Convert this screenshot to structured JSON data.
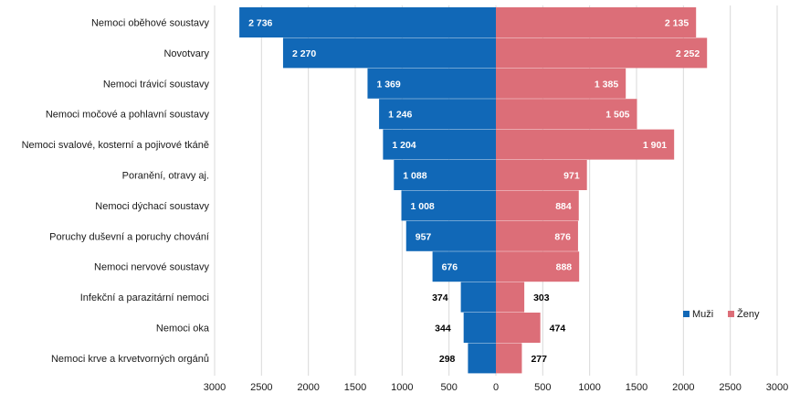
{
  "chart_data": {
    "type": "bar",
    "orientation": "horizontal-butterfly",
    "categories": [
      "Nemoci oběhové soustavy",
      "Novotvary",
      "Nemoci trávicí soustavy",
      "Nemoci močové a pohlavní soustavy",
      "Nemoci svalové, kosterní a pojivové tkáně",
      "Poranění, otravy aj.",
      "Nemoci dýchací soustavy",
      "Poruchy duševní a poruchy chování",
      "Nemoci nervové soustavy",
      "Infekční a parazitární nemoci",
      "Nemoci oka",
      "Nemoci krve a krvetvorných orgánů"
    ],
    "series": [
      {
        "name": "Muži",
        "color": "#1168b7",
        "values": [
          2736,
          2270,
          1369,
          1246,
          1204,
          1088,
          1008,
          957,
          676,
          374,
          344,
          298
        ],
        "labels": [
          "2 736",
          "2 270",
          "1 369",
          "1 246",
          "1 204",
          "1 088",
          "1 008",
          "957",
          "676",
          "374",
          "344",
          "298"
        ]
      },
      {
        "name": "Ženy",
        "color": "#dc6e78",
        "values": [
          2135,
          2252,
          1385,
          1505,
          1901,
          971,
          884,
          876,
          888,
          303,
          474,
          277
        ],
        "labels": [
          "2 135",
          "2 252",
          "1 385",
          "1 505",
          "1 901",
          "971",
          "884",
          "876",
          "888",
          "303",
          "474",
          "277"
        ]
      }
    ],
    "x_ticks": [
      "3000",
      "2500",
      "2000",
      "1500",
      "1000",
      "500",
      "0",
      "500",
      "1000",
      "1500",
      "2000",
      "2500",
      "3000"
    ],
    "xlim": [
      -3000,
      3000
    ],
    "grid": "vertical",
    "legend": {
      "position": "right",
      "items": [
        "Muži",
        "Ženy"
      ]
    },
    "title": "",
    "xlabel": "",
    "ylabel": ""
  }
}
